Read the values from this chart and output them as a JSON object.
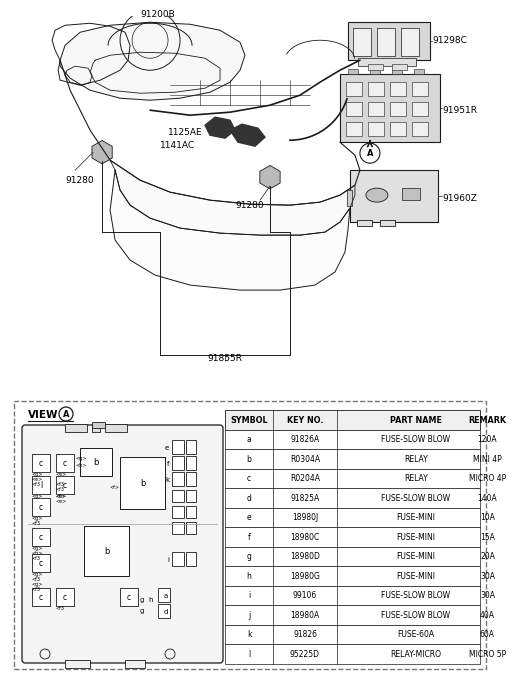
{
  "bg_color": "#ffffff",
  "line_color": "#1a1a1a",
  "text_color": "#000000",
  "gray_fill": "#e8e8e8",
  "mid_gray": "#cccccc",
  "dark_gray": "#555555",
  "table_headers": [
    "SYMBOL",
    "KEY NO.",
    "PART NAME",
    "REMARK"
  ],
  "table_data": [
    [
      "a",
      "91826A",
      "FUSE-SLOW BLOW",
      "120A"
    ],
    [
      "b",
      "R0304A",
      "RELAY",
      "MINI 4P"
    ],
    [
      "c",
      "R0204A",
      "RELAY",
      "MICRO 4P"
    ],
    [
      "d",
      "91825A",
      "FUSE-SLOW BLOW",
      "140A"
    ],
    [
      "e",
      "18980J",
      "FUSE-MINI",
      "10A"
    ],
    [
      "f",
      "18980C",
      "FUSE-MINI",
      "15A"
    ],
    [
      "g",
      "18980D",
      "FUSE-MINI",
      "20A"
    ],
    [
      "h",
      "18980G",
      "FUSE-MINI",
      "30A"
    ],
    [
      "i",
      "99106",
      "FUSE-SLOW BLOW",
      "30A"
    ],
    [
      "j",
      "18980A",
      "FUSE-SLOW BLOW",
      "40A"
    ],
    [
      "k",
      "91826",
      "FUSE-60A",
      "60A"
    ],
    [
      "l",
      "95225D",
      "RELAY-MICRO",
      "MICRO 5P"
    ]
  ]
}
